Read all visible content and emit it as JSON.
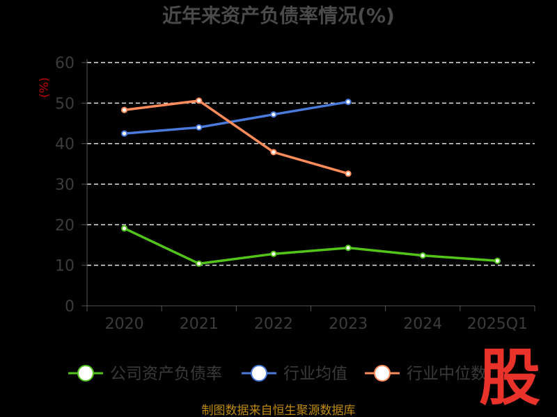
{
  "chart_data": {
    "type": "line",
    "title": "近年来资产负债率情况(%)",
    "ylabel": "(%)",
    "ylim": [
      0,
      60
    ],
    "yticks": [
      0,
      10,
      20,
      30,
      40,
      50,
      60
    ],
    "categories": [
      "2020",
      "2021",
      "2022",
      "2023",
      "2024",
      "2025Q1"
    ],
    "grid": true,
    "legend_position": "bottom",
    "series": [
      {
        "name": "公司资产负债率",
        "color": "#52c41a",
        "values": [
          19.1,
          10.4,
          12.8,
          14.3,
          12.4,
          11.1
        ]
      },
      {
        "name": "行业均值",
        "color": "#4a7bdc",
        "values": [
          42.5,
          44.0,
          47.2,
          50.3,
          null,
          null
        ]
      },
      {
        "name": "行业中位数",
        "color": "#ff8c5a",
        "values": [
          48.3,
          50.6,
          37.9,
          32.6,
          null,
          null
        ]
      }
    ]
  },
  "source": "制图数据来自恒生聚源数据库",
  "logo_text": "股"
}
